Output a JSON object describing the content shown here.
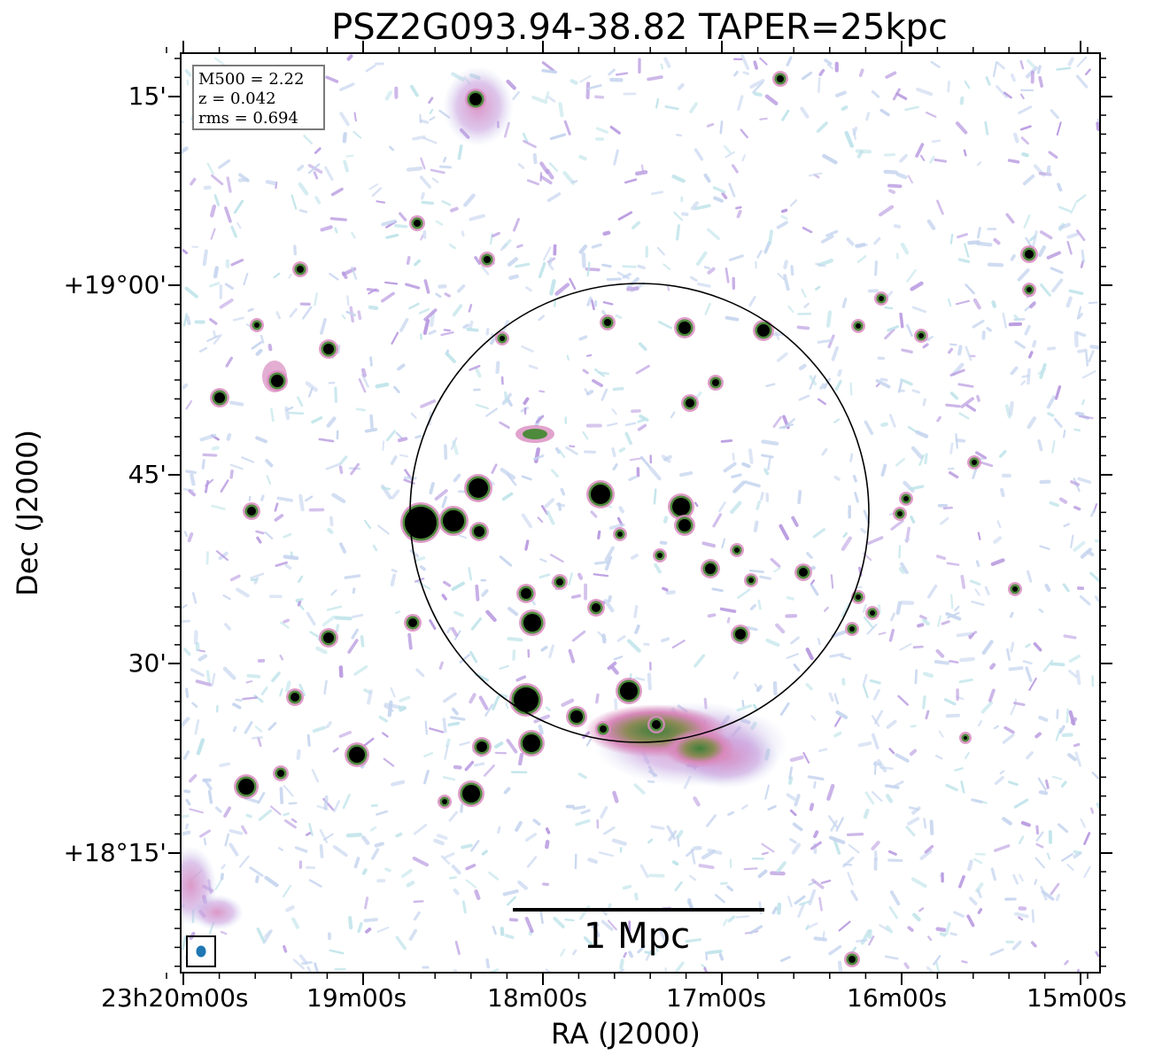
{
  "title": "PSZ2G093.94-38.82 TAPER=25kpc",
  "axes": {
    "xlabel": "RA (J2000)",
    "ylabel": "Dec (J2000)",
    "x_ticks": [
      "23h20m00s",
      "19m00s",
      "18m00s",
      "17m00s",
      "16m00s",
      "15m00s"
    ],
    "y_ticks": [
      "15'",
      "+19°00'",
      "45'",
      "30'",
      "+18°15'"
    ]
  },
  "info": {
    "m500": "M500 = 2.22",
    "z": "z = 0.042",
    "rms": "rms = 0.694"
  },
  "scalebar": {
    "label": "1 Mpc"
  },
  "colors": {
    "noise_light": "#c6d5ef",
    "noise_cyan": "#bfe4ea",
    "emission_pink": "#d98cc0",
    "emission_purple": "#b899e0",
    "emission_green": "#4d8a3c",
    "source_core": "#000000",
    "beam": "#1f77b4"
  }
}
